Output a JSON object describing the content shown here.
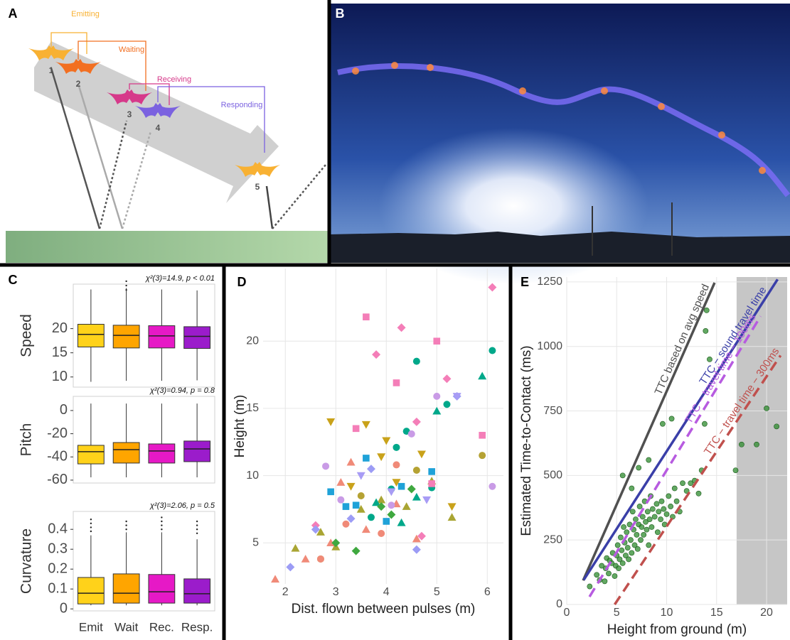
{
  "panel_labels": [
    "A",
    "B",
    "C",
    "D",
    "E"
  ],
  "diagram": {
    "phases": [
      "Emitting",
      "Waiting",
      "Receiving",
      "Responding"
    ],
    "positions": [
      "1",
      "2",
      "3",
      "4",
      "5"
    ]
  },
  "chart_data": [
    {
      "type": "box",
      "ylabel": "Speed",
      "annotation": "χ²(3)=14.9, p < 0.01",
      "colors": [
        "#FFD21A",
        "#FFA500",
        "#E619C6",
        "#9B1CCB"
      ],
      "ylim": [
        7.9,
        29.2
      ],
      "yticks": [
        10,
        15,
        20
      ],
      "boxes": [
        {
          "min": 9.0,
          "q1": 16.2,
          "median": 18.8,
          "q3": 20.9,
          "max": 28.1,
          "outliers": []
        },
        {
          "min": 9.2,
          "q1": 16.0,
          "median": 18.6,
          "q3": 20.7,
          "max": 28.4,
          "outliers": [
            28.9,
            29.8,
            28.0
          ]
        },
        {
          "min": 9.2,
          "q1": 16.0,
          "median": 18.5,
          "q3": 20.6,
          "max": 28.1,
          "outliers": []
        },
        {
          "min": 9.3,
          "q1": 15.9,
          "median": 18.4,
          "q3": 20.4,
          "max": 27.9,
          "outliers": []
        }
      ]
    },
    {
      "type": "box",
      "ylabel": "Pitch",
      "annotation": "χ²(3)=0.94, p = 0.8",
      "colors": [
        "#FFD21A",
        "#FFA500",
        "#E619C6",
        "#9B1CCB"
      ],
      "ylim": [
        -62.5,
        12.2
      ],
      "yticks": [
        0,
        -20,
        -40,
        -60
      ],
      "boxes": [
        {
          "min": -57.6,
          "q1": -46.0,
          "median": -35.5,
          "q3": -30.0,
          "max": 6.0,
          "outliers": []
        },
        {
          "min": -57.6,
          "q1": -45.3,
          "median": -33.7,
          "q3": -27.6,
          "max": 6.0,
          "outliers": []
        },
        {
          "min": -57.6,
          "q1": -45.3,
          "median": -34.9,
          "q3": -28.8,
          "max": 6.0,
          "outliers": []
        },
        {
          "min": -57.6,
          "q1": -44.1,
          "median": -33.1,
          "q3": -26.3,
          "max": 6.0,
          "outliers": []
        }
      ]
    },
    {
      "type": "box",
      "ylabel": "Curvature",
      "annotation": "χ²(3)=2.06, p = 0.5",
      "categories": [
        "Emit",
        "Wait",
        "Rec.",
        "Resp."
      ],
      "colors": [
        "#FFD21A",
        "#FFA500",
        "#E619C6",
        "#9B1CCB"
      ],
      "ylim": [
        -0.01,
        0.49
      ],
      "yticks": [
        0.0,
        0.1,
        0.2,
        0.3,
        0.4
      ],
      "boxes": [
        {
          "min": 0.018,
          "q1": 0.025,
          "median": 0.079,
          "q3": 0.158,
          "max": 0.37,
          "outliers": [
            0.39,
            0.41,
            0.43,
            0.45
          ]
        },
        {
          "min": 0.018,
          "q1": 0.029,
          "median": 0.079,
          "q3": 0.176,
          "max": 0.385,
          "outliers": [
            0.4,
            0.42,
            0.44
          ]
        },
        {
          "min": 0.018,
          "q1": 0.029,
          "median": 0.086,
          "q3": 0.173,
          "max": 0.385,
          "outliers": [
            0.4,
            0.42,
            0.44,
            0.46
          ]
        },
        {
          "min": 0.018,
          "q1": 0.029,
          "median": 0.076,
          "q3": 0.151,
          "max": 0.35,
          "outliers": [
            0.38,
            0.4,
            0.42,
            0.44
          ]
        }
      ]
    },
    {
      "type": "scatter",
      "xlabel": "Dist. flown between pulses (m)",
      "ylabel": "Height (m)",
      "grid": true,
      "xlim": [
        1.56,
        6.32
      ],
      "ylim": [
        1.95,
        25.4
      ],
      "xticks": [
        2,
        3,
        4,
        5,
        6
      ],
      "yticks": [
        5,
        10,
        15,
        20
      ],
      "series": [
        {
          "color": "#F08A78",
          "marker": "triangle",
          "x": [
            1.8,
            2.4,
            2.9,
            3.3,
            3.6,
            4.2,
            4.6,
            3.1
          ],
          "values": [
            2.3,
            3.8,
            5.0,
            11.0,
            6.0,
            7.9,
            5.3,
            9.5
          ]
        },
        {
          "color": "#A9A533",
          "marker": "triangle",
          "x": [
            2.2,
            2.7,
            3.0,
            3.5,
            4.9,
            5.3,
            3.9,
            4.4
          ],
          "values": [
            4.6,
            5.8,
            4.7,
            7.5,
            9.6,
            6.9,
            8.2,
            7.7
          ]
        },
        {
          "color": "#1FA2D8",
          "marker": "square",
          "x": [
            2.9,
            3.4,
            3.6,
            4.0,
            4.3,
            4.9,
            3.2
          ],
          "values": [
            8.8,
            7.8,
            11.3,
            6.6,
            9.2,
            10.3,
            7.7
          ]
        },
        {
          "color": "#00A88A",
          "marker": "circle",
          "x": [
            3.7,
            4.1,
            4.2,
            4.6,
            4.9,
            5.2,
            6.1,
            4.4
          ],
          "values": [
            6.9,
            9.0,
            12.1,
            18.5,
            9.1,
            15.3,
            19.3,
            13.3
          ]
        },
        {
          "color": "#00A88A",
          "marker": "triangle",
          "x": [
            5.0,
            5.9,
            4.3,
            4.6,
            3.8
          ],
          "values": [
            14.8,
            17.4,
            6.5,
            8.4,
            8.0
          ]
        },
        {
          "color": "#C9A21A",
          "marker": "triangle-down",
          "x": [
            2.9,
            3.6,
            3.9,
            4.2,
            4.7,
            3.3,
            5.3,
            4.0
          ],
          "values": [
            14.0,
            13.8,
            11.4,
            9.5,
            11.6,
            9.2,
            7.7,
            12.6
          ]
        },
        {
          "color": "#F47EB8",
          "marker": "diamond",
          "x": [
            3.8,
            4.3,
            6.1,
            5.2,
            4.6,
            2.6,
            4.7
          ],
          "values": [
            19.0,
            21.0,
            24.0,
            17.2,
            14.0,
            6.3,
            5.5
          ]
        },
        {
          "color": "#F47EB8",
          "marker": "square",
          "x": [
            3.6,
            5.0,
            4.2,
            4.9,
            5.9,
            3.4
          ],
          "values": [
            21.8,
            20.0,
            16.9,
            9.4,
            13.0,
            13.5
          ]
        },
        {
          "color": "#9C9CF5",
          "marker": "diamond",
          "x": [
            2.1,
            2.6,
            3.3,
            3.7,
            4.6,
            5.4
          ],
          "values": [
            3.2,
            6.0,
            6.8,
            10.5,
            4.5,
            15.9
          ]
        },
        {
          "color": "#3FA83F",
          "marker": "diamond",
          "x": [
            3.0,
            3.9,
            4.5,
            3.4,
            4.1
          ],
          "values": [
            5.0,
            7.7,
            9.0,
            4.4,
            7.1
          ]
        },
        {
          "color": "#C99BE6",
          "marker": "circle",
          "x": [
            2.8,
            3.1,
            4.1,
            4.5,
            6.1,
            5.0
          ],
          "values": [
            10.7,
            8.2,
            7.8,
            13.1,
            9.2,
            15.9
          ]
        },
        {
          "color": "#B5A233",
          "marker": "circle",
          "x": [
            2.7,
            4.6,
            5.9,
            3.5
          ],
          "values": [
            3.8,
            10.4,
            11.5,
            8.5
          ]
        },
        {
          "color": "#A89CF5",
          "marker": "triangle-down",
          "x": [
            5.4,
            4.8,
            3.5,
            4.1
          ],
          "values": [
            15.9,
            8.2,
            10.0,
            8.8
          ]
        },
        {
          "color": "#F08A78",
          "marker": "circle",
          "x": [
            2.7,
            3.2,
            3.9,
            4.2
          ],
          "values": [
            3.8,
            6.4,
            5.7,
            10.8
          ]
        }
      ]
    },
    {
      "type": "scatter",
      "xlabel": "Height from ground (m)",
      "ylabel": "Estimated Time-to-Contact (ms)",
      "grid": true,
      "xlim": [
        0,
        22.06
      ],
      "ylim": [
        0,
        1269
      ],
      "xticks": [
        0,
        5,
        10,
        15,
        20
      ],
      "yticks": [
        0,
        250,
        500,
        750,
        1000,
        1250
      ],
      "shade_from": 17,
      "lines": [
        {
          "name": "TTC based on avg speed",
          "color": "#505050",
          "dashed": false,
          "x": [
            1.64,
            14.8
          ],
          "values": [
            93,
            1247
          ]
        },
        {
          "name": "TTC − sound travel time",
          "color": "#3A3FA8",
          "dashed": false,
          "x": [
            1.7,
            21.1
          ],
          "values": [
            95,
            1260
          ]
        },
        {
          "name": "TTC − travel time − 100ms",
          "color": "#B75BE0",
          "dashed": true,
          "x": [
            2.28,
            19.4
          ],
          "values": [
            30,
            1117
          ]
        },
        {
          "name": "TTC − travel time − 300ms",
          "color": "#C0504D",
          "dashed": true,
          "x": [
            4.8,
            21.4
          ],
          "values": [
            0,
            965
          ]
        }
      ],
      "series": [
        {
          "color": "#2E8B2E",
          "x": [
            2.3,
            3.0,
            3.3,
            3.5,
            3.8,
            3.9,
            4.0,
            4.2,
            4.3,
            4.5,
            4.6,
            4.8,
            4.9,
            5.0,
            5.1,
            5.2,
            5.3,
            5.4,
            5.5,
            5.6,
            5.7,
            5.8,
            5.9,
            6.0,
            6.1,
            6.2,
            6.3,
            6.4,
            6.5,
            6.6,
            6.7,
            6.8,
            6.9,
            7.0,
            7.1,
            7.2,
            7.3,
            7.4,
            7.5,
            7.6,
            7.7,
            7.8,
            7.9,
            8.0,
            8.1,
            8.2,
            8.3,
            8.4,
            8.5,
            8.6,
            8.8,
            9.0,
            9.1,
            9.2,
            9.4,
            9.5,
            9.7,
            9.8,
            10.0,
            10.2,
            10.4,
            10.6,
            10.8,
            11.0,
            11.3,
            11.6,
            12.0,
            12.4,
            12.8,
            13.2,
            13.5,
            13.8,
            14.0,
            13.9,
            14.3,
            16.9,
            17.5,
            19.0,
            20.0,
            21.0,
            8.2,
            9.6,
            5.6,
            7.2,
            10.5,
            6.5
          ],
          "values": [
            70,
            115,
            95,
            150,
            90,
            140,
            180,
            120,
            170,
            160,
            200,
            110,
            150,
            190,
            230,
            140,
            175,
            260,
            210,
            160,
            300,
            240,
            190,
            280,
            220,
            175,
            310,
            250,
            200,
            360,
            290,
            230,
            330,
            270,
            215,
            310,
            380,
            250,
            300,
            340,
            270,
            400,
            320,
            290,
            360,
            230,
            330,
            420,
            300,
            370,
            340,
            390,
            280,
            360,
            330,
            400,
            370,
            310,
            350,
            420,
            380,
            340,
            450,
            400,
            360,
            470,
            440,
            470,
            480,
            430,
            520,
            700,
            1140,
            1060,
            950,
            520,
            620,
            620,
            760,
            690,
            560,
            700,
            500,
            530,
            720,
            450
          ]
        }
      ]
    }
  ]
}
